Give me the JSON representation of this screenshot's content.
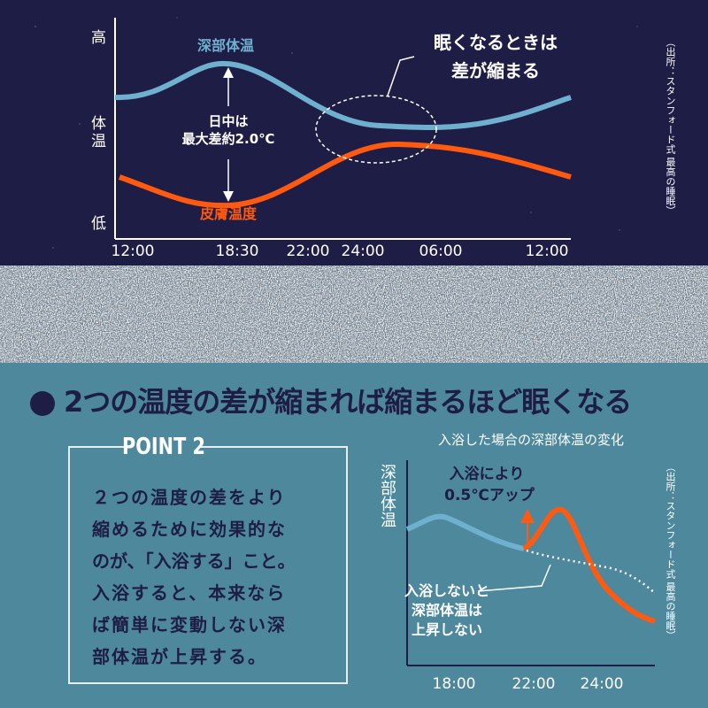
{
  "top_chart": {
    "y_labels": [
      "高",
      "体温",
      "低"
    ],
    "core_label": "深部体温",
    "skin_label": "皮膚温度",
    "difference_note": [
      "日中は",
      "最大差約2.0℃"
    ],
    "callout": [
      "眠くなるときは",
      "差が縮まる"
    ],
    "x_labels": [
      "12:00",
      "18:30",
      "22:00",
      "24:00",
      "06:00",
      "12:00"
    ],
    "source": "（出所：スタンフォード式 最高の睡眠）"
  },
  "heading": "2つの温度の差が縮まれば縮まるほど眠くなる",
  "point": {
    "title": "POINT 2",
    "body": [
      "２つの温度の差をより",
      "縮めるために効果的な",
      "のが、「入浴する」こと。",
      "入浴すると、本来なら",
      "ば簡単に変動しない深",
      "部体温が上昇する。"
    ]
  },
  "bottom_chart": {
    "title": "入浴した場合の深部体温の変化",
    "y_label": "深部体温",
    "bath_note": [
      "入浴により",
      "0.5℃アップ"
    ],
    "no_bath_note": [
      "入浴しないと",
      "深部体温は",
      "上昇しない"
    ],
    "x_labels": [
      "18:00",
      "22:00",
      "24:00"
    ],
    "source": "（出所：スタンフォード式 最高の睡眠）"
  }
}
